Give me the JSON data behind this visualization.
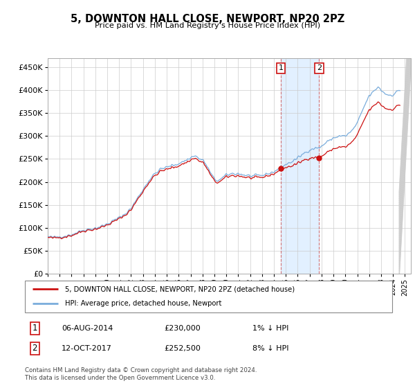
{
  "title": "5, DOWNTON HALL CLOSE, NEWPORT, NP20 2PZ",
  "subtitle": "Price paid vs. HM Land Registry's House Price Index (HPI)",
  "ylim": [
    0,
    470000
  ],
  "yticks": [
    0,
    50000,
    100000,
    150000,
    200000,
    250000,
    300000,
    350000,
    400000,
    450000
  ],
  "ytick_labels": [
    "£0",
    "£50K",
    "£100K",
    "£150K",
    "£200K",
    "£250K",
    "£300K",
    "£350K",
    "£400K",
    "£450K"
  ],
  "hpi_color": "#7aaddc",
  "sale_color": "#cc1111",
  "background_color": "#ffffff",
  "legend_house_label": "5, DOWNTON HALL CLOSE, NEWPORT, NP20 2PZ (detached house)",
  "legend_hpi_label": "HPI: Average price, detached house, Newport",
  "annotation1_date": "06-AUG-2014",
  "annotation1_price": "£230,000",
  "annotation1_hpi": "1% ↓ HPI",
  "annotation2_date": "12-OCT-2017",
  "annotation2_price": "£252,500",
  "annotation2_hpi": "8% ↓ HPI",
  "footnote": "Contains HM Land Registry data © Crown copyright and database right 2024.\nThis data is licensed under the Open Government Licence v3.0.",
  "sale1_year": 2014.583,
  "sale1_price": 230000,
  "sale2_year": 2017.792,
  "sale2_price": 252500,
  "xlim_start": 1995,
  "xlim_end": 2025.5,
  "span_color": "#ddeeff",
  "vline_color": "#cc5555"
}
